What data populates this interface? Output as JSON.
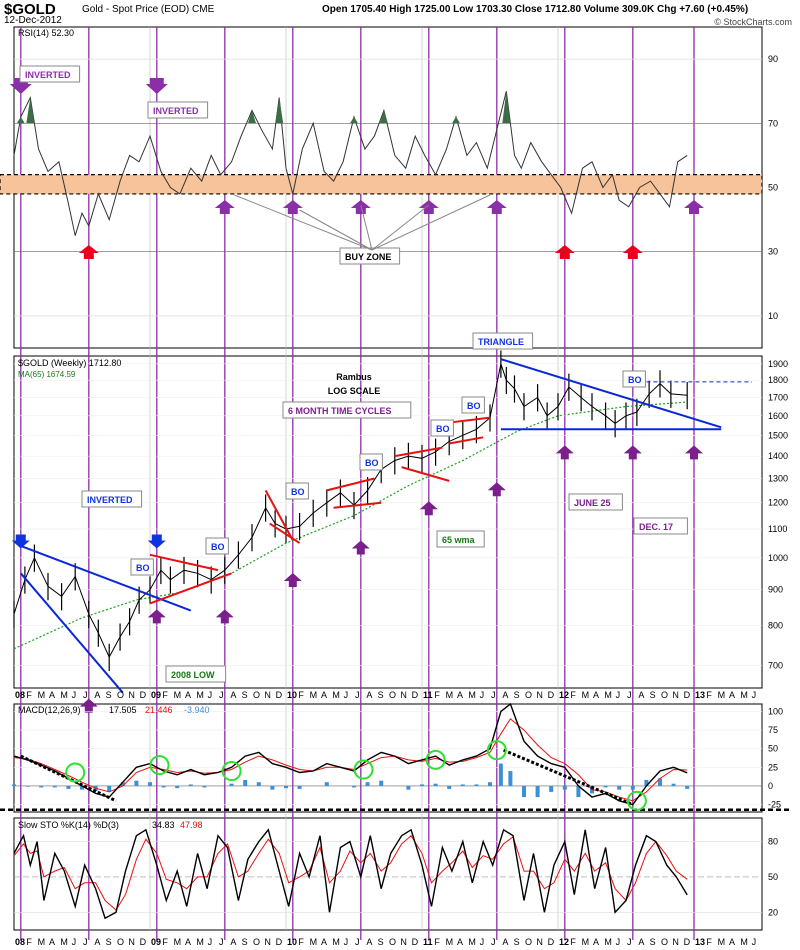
{
  "header": {
    "symbol": "$GOLD",
    "description": "Gold - Spot Price (EOD)  CME",
    "date": "12-Dec-2012",
    "quote": "Open 1705.40  High 1725.00  Low 1703.30  Close 1712.80  Volume 309.0K  Chg +7.60 (+0.45%)",
    "watermark": "© StockCharts.com"
  },
  "chart_data": [
    {
      "type": "line",
      "panel": "rsi",
      "label": "RSI(14) 52.30",
      "yticks": [
        10,
        30,
        50,
        70,
        90
      ],
      "ylim": [
        0,
        100
      ],
      "buy_zone": [
        48,
        54
      ],
      "x": [
        2008.0,
        2008.05,
        2008.12,
        2008.18,
        2008.25,
        2008.33,
        2008.4,
        2008.45,
        2008.5,
        2008.55,
        2008.62,
        2008.7,
        2008.78,
        2008.85,
        2008.92,
        2009.0,
        2009.08,
        2009.15,
        2009.22,
        2009.3,
        2009.38,
        2009.45,
        2009.52,
        2009.6,
        2009.67,
        2009.75,
        2009.82,
        2009.9,
        2009.95,
        2010.0,
        2010.05,
        2010.12,
        2010.2,
        2010.28,
        2010.35,
        2010.42,
        2010.5,
        2010.58,
        2010.65,
        2010.72,
        2010.8,
        2010.88,
        2010.95,
        2011.02,
        2011.1,
        2011.18,
        2011.25,
        2011.33,
        2011.4,
        2011.48,
        2011.55,
        2011.62,
        2011.68,
        2011.73,
        2011.8,
        2011.88,
        2011.95,
        2012.02,
        2012.1,
        2012.18,
        2012.25,
        2012.33,
        2012.4,
        2012.45,
        2012.52,
        2012.6,
        2012.68,
        2012.75,
        2012.82,
        2012.88,
        2012.95
      ],
      "y": [
        60,
        72,
        78,
        62,
        55,
        58,
        45,
        35,
        42,
        38,
        48,
        40,
        52,
        60,
        58,
        66,
        55,
        50,
        48,
        56,
        52,
        60,
        54,
        58,
        66,
        74,
        68,
        62,
        78,
        56,
        48,
        62,
        70,
        55,
        52,
        58,
        72,
        62,
        66,
        74,
        60,
        56,
        66,
        60,
        54,
        62,
        72,
        60,
        64,
        56,
        68,
        80,
        60,
        56,
        64,
        58,
        54,
        50,
        42,
        56,
        58,
        50,
        54,
        46,
        44,
        50,
        52,
        48,
        44,
        58,
        60
      ],
      "vline_years": [
        2008.05,
        2008.55,
        2009.05,
        2009.55,
        2010.05,
        2010.55,
        2011.05,
        2011.55,
        2012.05,
        2012.55,
        2013.0
      ],
      "arrows": [
        {
          "x": 2008.05,
          "direction": "down",
          "color": "purple"
        },
        {
          "x": 2008.55,
          "direction": "up",
          "color": "red"
        },
        {
          "x": 2009.05,
          "direction": "down",
          "color": "purple"
        },
        {
          "x": 2009.55,
          "direction": "up",
          "color": "purple"
        },
        {
          "x": 2010.05,
          "direction": "up",
          "color": "purple"
        },
        {
          "x": 2010.55,
          "direction": "up",
          "color": "purple"
        },
        {
          "x": 2011.05,
          "direction": "up",
          "color": "purple"
        },
        {
          "x": 2011.55,
          "direction": "up",
          "color": "purple"
        },
        {
          "x": 2012.05,
          "direction": "up",
          "color": "red"
        },
        {
          "x": 2012.55,
          "direction": "up",
          "color": "red"
        },
        {
          "x": 2013.0,
          "direction": "up",
          "color": "purple"
        }
      ],
      "callouts": [
        "INVERTED",
        "INVERTED",
        "BUY ZONE"
      ]
    },
    {
      "type": "line",
      "panel": "price",
      "label": "$GOLD (Weekly) 1712.80",
      "ma_label": "MA(65) 1674.59",
      "log_scale": true,
      "yticks": [
        700,
        800,
        900,
        1000,
        1100,
        1200,
        1300,
        1400,
        1500,
        1600,
        1700,
        1800,
        1900
      ],
      "ylim": [
        650,
        1950
      ],
      "x": [
        2008.0,
        2008.08,
        2008.15,
        2008.25,
        2008.35,
        2008.45,
        2008.55,
        2008.62,
        2008.7,
        2008.78,
        2008.85,
        2008.92,
        2009.0,
        2009.08,
        2009.15,
        2009.25,
        2009.35,
        2009.45,
        2009.55,
        2009.65,
        2009.75,
        2009.85,
        2009.92,
        2010.0,
        2010.1,
        2010.2,
        2010.3,
        2010.4,
        2010.5,
        2010.6,
        2010.7,
        2010.8,
        2010.9,
        2011.0,
        2011.1,
        2011.2,
        2011.3,
        2011.4,
        2011.5,
        2011.58,
        2011.62,
        2011.68,
        2011.75,
        2011.85,
        2011.92,
        2012.0,
        2012.08,
        2012.17,
        2012.25,
        2012.35,
        2012.42,
        2012.5,
        2012.58,
        2012.67,
        2012.75,
        2012.83,
        2012.95
      ],
      "y": [
        830,
        930,
        1000,
        910,
        880,
        940,
        830,
        780,
        720,
        770,
        810,
        870,
        900,
        960,
        930,
        960,
        950,
        930,
        960,
        1010,
        1070,
        1180,
        1120,
        1100,
        1110,
        1160,
        1200,
        1240,
        1190,
        1250,
        1340,
        1380,
        1400,
        1390,
        1420,
        1470,
        1500,
        1530,
        1590,
        1900,
        1800,
        1750,
        1650,
        1700,
        1600,
        1650,
        1760,
        1700,
        1650,
        1600,
        1560,
        1600,
        1620,
        1720,
        1780,
        1720,
        1712
      ],
      "ma_x": [
        2008.0,
        2008.5,
        2008.9,
        2009.2,
        2009.6,
        2010.0,
        2010.5,
        2010.9,
        2011.3,
        2011.7,
        2012.0,
        2012.5,
        2012.95
      ],
      "ma_y": [
        740,
        820,
        870,
        890,
        950,
        1050,
        1150,
        1270,
        1380,
        1520,
        1600,
        1650,
        1674
      ],
      "boxes": [
        "INVERTED",
        "BO",
        "BO",
        "BO",
        "BO",
        "BO",
        "BO",
        "BO",
        "TRIANGLE",
        "BO",
        "2008 LOW",
        "65 wma",
        "JUNE 25",
        "DEC. 17"
      ],
      "annotations": [
        "Rambus",
        "LOG SCALE",
        "6 MONTH TIME CYCLES"
      ],
      "month_axis": [
        "08",
        "F",
        "M",
        "A",
        "M",
        "J",
        "J",
        "A",
        "S",
        "O",
        "N",
        "D",
        "09",
        "F",
        "M",
        "A",
        "M",
        "J",
        "J",
        "A",
        "S",
        "O",
        "N",
        "D",
        "10",
        "F",
        "M",
        "A",
        "M",
        "J",
        "J",
        "A",
        "S",
        "O",
        "N",
        "D",
        "11",
        "F",
        "M",
        "A",
        "M",
        "J",
        "J",
        "A",
        "S",
        "O",
        "N",
        "D",
        "12",
        "F",
        "M",
        "A",
        "M",
        "J",
        "J",
        "A",
        "S",
        "O",
        "N",
        "D",
        "13",
        "F",
        "M",
        "A",
        "M",
        "J"
      ]
    },
    {
      "type": "line",
      "panel": "macd",
      "label": "MACD(12,26,9)",
      "values_text": [
        "17.505",
        "21.446",
        "-3.940"
      ],
      "yticks": [
        100,
        75,
        50,
        25,
        0,
        -25
      ],
      "ylim": [
        -35,
        110
      ],
      "x": [
        2008.0,
        2008.1,
        2008.2,
        2008.3,
        2008.4,
        2008.5,
        2008.6,
        2008.7,
        2008.8,
        2008.9,
        2009.0,
        2009.1,
        2009.2,
        2009.3,
        2009.4,
        2009.5,
        2009.6,
        2009.7,
        2009.8,
        2009.9,
        2010.0,
        2010.1,
        2010.2,
        2010.3,
        2010.4,
        2010.5,
        2010.6,
        2010.7,
        2010.8,
        2010.9,
        2011.0,
        2011.1,
        2011.2,
        2011.3,
        2011.4,
        2011.5,
        2011.58,
        2011.65,
        2011.75,
        2011.85,
        2011.95,
        2012.05,
        2012.15,
        2012.25,
        2012.35,
        2012.45,
        2012.55,
        2012.65,
        2012.75,
        2012.85,
        2012.95
      ],
      "macd": [
        40,
        35,
        28,
        20,
        10,
        0,
        -10,
        -15,
        5,
        25,
        30,
        20,
        15,
        22,
        15,
        18,
        25,
        40,
        45,
        30,
        25,
        18,
        20,
        30,
        25,
        20,
        35,
        45,
        40,
        30,
        35,
        40,
        28,
        35,
        40,
        50,
        100,
        110,
        60,
        40,
        30,
        25,
        0,
        -15,
        -10,
        -20,
        -25,
        0,
        20,
        25,
        17.5
      ],
      "signal": [
        38,
        36,
        30,
        22,
        14,
        5,
        -3,
        -8,
        0,
        18,
        25,
        22,
        18,
        20,
        17,
        18,
        22,
        32,
        40,
        35,
        28,
        22,
        20,
        25,
        25,
        22,
        30,
        38,
        40,
        35,
        33,
        37,
        32,
        33,
        38,
        45,
        70,
        90,
        75,
        55,
        38,
        30,
        15,
        -5,
        -8,
        -15,
        -20,
        -8,
        10,
        22,
        21.4
      ],
      "histogram": [
        2,
        -1,
        -2,
        -2,
        -4,
        -5,
        -7,
        -7,
        5,
        7,
        5,
        -2,
        -3,
        2,
        -2,
        0,
        3,
        8,
        5,
        -5,
        -3,
        -4,
        0,
        5,
        0,
        -2,
        5,
        7,
        0,
        -5,
        2,
        3,
        -4,
        2,
        2,
        5,
        30,
        20,
        -15,
        -15,
        -8,
        -5,
        -15,
        -10,
        -2,
        -5,
        -5,
        8,
        10,
        3,
        -3.94
      ]
    },
    {
      "type": "line",
      "panel": "stochastic",
      "label": "Slow STO %K(14) %D(3)",
      "values_text": [
        "34.83",
        "47.98"
      ],
      "yticks": [
        80,
        50,
        20
      ],
      "ylim": [
        5,
        100
      ],
      "x": [
        2008.0,
        2008.07,
        2008.12,
        2008.17,
        2008.22,
        2008.3,
        2008.37,
        2008.45,
        2008.52,
        2008.6,
        2008.67,
        2008.75,
        2008.82,
        2008.9,
        2008.97,
        2009.05,
        2009.12,
        2009.2,
        2009.27,
        2009.35,
        2009.42,
        2009.5,
        2009.57,
        2009.65,
        2009.72,
        2009.8,
        2009.87,
        2009.95,
        2010.02,
        2010.1,
        2010.17,
        2010.25,
        2010.32,
        2010.4,
        2010.47,
        2010.55,
        2010.62,
        2010.7,
        2010.77,
        2010.85,
        2010.92,
        2011.0,
        2011.07,
        2011.15,
        2011.22,
        2011.3,
        2011.37,
        2011.45,
        2011.52,
        2011.6,
        2011.67,
        2011.75,
        2011.82,
        2011.9,
        2011.97,
        2012.05,
        2012.12,
        2012.2,
        2012.27,
        2012.35,
        2012.42,
        2012.5,
        2012.57,
        2012.65,
        2012.72,
        2012.8,
        2012.87,
        2012.95
      ],
      "k": [
        70,
        85,
        60,
        80,
        30,
        70,
        55,
        25,
        60,
        40,
        15,
        20,
        55,
        85,
        90,
        60,
        30,
        55,
        25,
        70,
        40,
        85,
        75,
        30,
        65,
        80,
        90,
        55,
        25,
        70,
        50,
        85,
        20,
        75,
        80,
        50,
        85,
        40,
        70,
        85,
        90,
        60,
        25,
        75,
        55,
        80,
        45,
        80,
        60,
        90,
        85,
        30,
        70,
        20,
        60,
        80,
        35,
        90,
        40,
        75,
        20,
        30,
        60,
        85,
        80,
        60,
        50,
        34.8
      ],
      "d": [
        68,
        78,
        70,
        72,
        50,
        55,
        58,
        40,
        45,
        45,
        30,
        22,
        35,
        65,
        82,
        70,
        48,
        45,
        40,
        50,
        50,
        70,
        78,
        50,
        55,
        70,
        82,
        70,
        45,
        50,
        55,
        75,
        45,
        55,
        72,
        62,
        70,
        55,
        62,
        78,
        85,
        70,
        45,
        55,
        62,
        72,
        58,
        68,
        65,
        78,
        84,
        55,
        55,
        40,
        45,
        65,
        55,
        70,
        55,
        62,
        40,
        30,
        45,
        70,
        80,
        68,
        55,
        48
      ]
    }
  ]
}
